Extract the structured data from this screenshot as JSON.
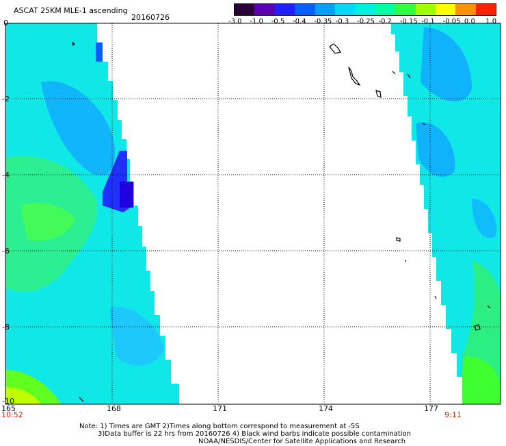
{
  "header": {
    "title": "ASCAT 25KM MLE-1 ascending",
    "date": "20160726"
  },
  "colorbar": {
    "labels": [
      "-3.0",
      "-1.0",
      "-0.5",
      "-0.4",
      "-0.35",
      "-0.3",
      "-0.25",
      "-0.2",
      "-0.15",
      "-0.1",
      "-0.05",
      "0.0",
      "1.0"
    ],
    "colors": [
      "#2a0038",
      "#5a00b0",
      "#2020ff",
      "#0060ff",
      "#00a0ff",
      "#00d8ff",
      "#00f0e0",
      "#00ffa0",
      "#30ff40",
      "#a0ff00",
      "#ffff00",
      "#ff9000",
      "#ff2000"
    ]
  },
  "axes": {
    "x_ticks": [
      "165",
      "168",
      "171",
      "174",
      "177"
    ],
    "y_ticks": [
      "0",
      "-2",
      "-4",
      "-6",
      "-8",
      "-10"
    ]
  },
  "times": {
    "left": "10:52",
    "right": "9:11"
  },
  "notes": {
    "line1": "Note: 1) Times are GMT 2)Times along bottom correspond to measurement at -5S",
    "line2": "3)Data buffer is 22 hrs from 20160726 4) Black wind barbs indicate possible contamination",
    "line3": "NOAA/NESDIS/Center for Satellite Applications and Research"
  }
}
